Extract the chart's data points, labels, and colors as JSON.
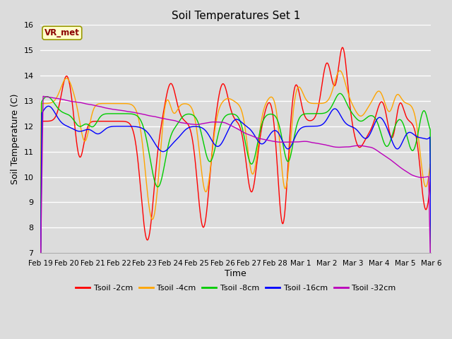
{
  "title": "Soil Temperatures Set 1",
  "xlabel": "Time",
  "ylabel": "Soil Temperature (C)",
  "ylim": [
    7.0,
    16.0
  ],
  "yticks": [
    7.0,
    8.0,
    9.0,
    10.0,
    11.0,
    12.0,
    13.0,
    14.0,
    15.0,
    16.0
  ],
  "background_color": "#dcdcdc",
  "grid_color": "#ffffff",
  "annotation_text": "VR_met",
  "annotation_color": "#8b0000",
  "annotation_bg": "#ffffcc",
  "annotation_edge": "#999900",
  "colors": {
    "Tsoil -2cm": "#ff0000",
    "Tsoil -4cm": "#ffa500",
    "Tsoil -8cm": "#00cc00",
    "Tsoil -16cm": "#0000ff",
    "Tsoil -32cm": "#bb00bb"
  },
  "x_tick_labels": [
    "Feb 19",
    "Feb 20",
    "Feb 21",
    "Feb 22",
    "Feb 23",
    "Feb 24",
    "Feb 25",
    "Feb 26",
    "Feb 27",
    "Feb 28",
    "Mar 1",
    "Mar 2",
    "Mar 3",
    "Mar 4",
    "Mar 5",
    "Mar 6"
  ],
  "legend_labels": [
    "Tsoil -2cm",
    "Tsoil -4cm",
    "Tsoil -8cm",
    "Tsoil -16cm",
    "Tsoil -32cm"
  ]
}
